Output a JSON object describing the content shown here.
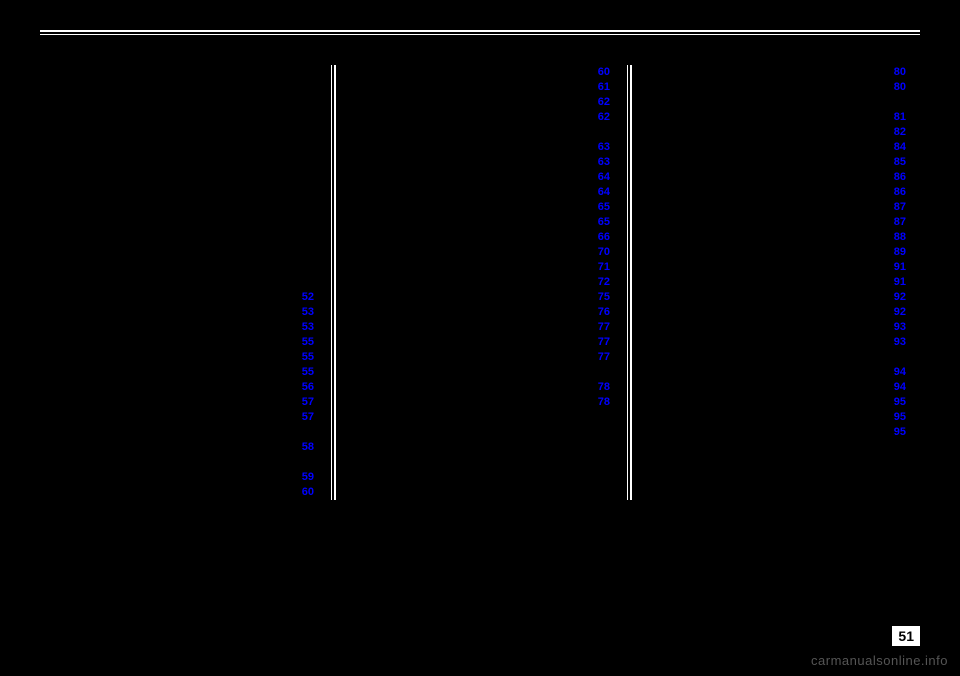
{
  "columns": [
    {
      "leading_gaps": 15,
      "items": [
        "52",
        "53",
        "53",
        "55",
        "55",
        "55",
        "56",
        "57",
        "57",
        "",
        "58",
        "",
        "59",
        "60"
      ]
    },
    {
      "leading_gaps": 0,
      "items": [
        "60",
        "61",
        "62",
        "62",
        "",
        "63",
        "63",
        "64",
        "64",
        "65",
        "65",
        "66",
        "70",
        "71",
        "72",
        "75",
        "76",
        "77",
        "77",
        "77",
        "",
        "78",
        "78"
      ]
    },
    {
      "leading_gaps": 0,
      "items": [
        "80",
        "80",
        "",
        "81",
        "82",
        "84",
        "85",
        "86",
        "86",
        "87",
        "87",
        "88",
        "89",
        "91",
        "91",
        "92",
        "92",
        "93",
        "93",
        "",
        "94",
        "94",
        "95",
        "95",
        "95"
      ]
    }
  ],
  "page_number": "51",
  "watermark": "carmanualsonline.info",
  "colors": {
    "link": "#0000ff",
    "bg": "#000000",
    "rule": "#ffffff"
  }
}
